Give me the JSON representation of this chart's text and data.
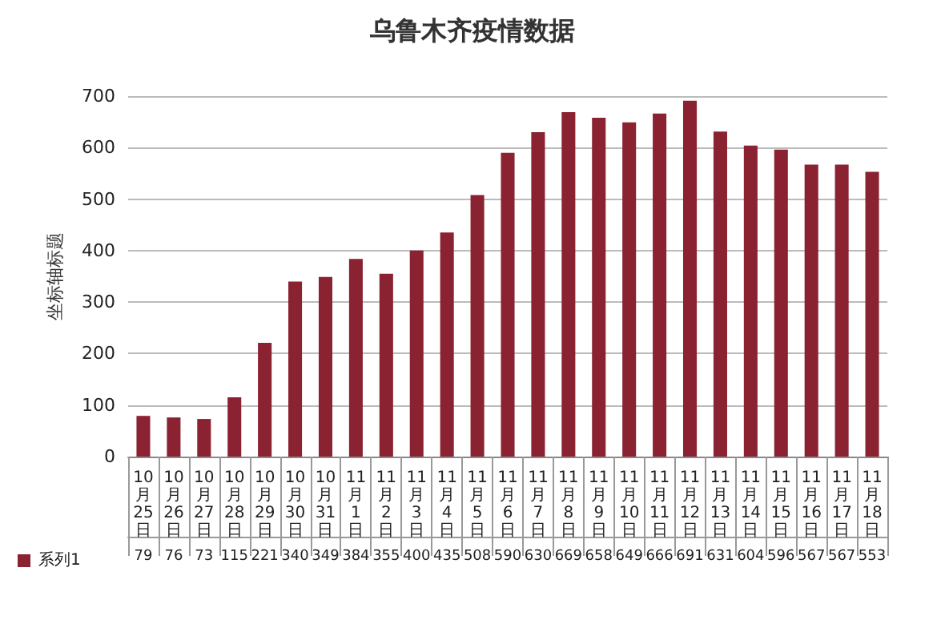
{
  "chart_data": {
    "type": "bar",
    "title": "乌鲁木齐疫情数据",
    "ylabel": "坐标轴标题",
    "categories": [
      "10月25日",
      "10月26日",
      "10月27日",
      "10月28日",
      "10月29日",
      "10月30日",
      "10月31日",
      "11月1日",
      "11月2日",
      "11月3日",
      "11月4日",
      "11月5日",
      "11月6日",
      "11月7日",
      "11月8日",
      "11月9日",
      "11月10日",
      "11月11日",
      "11月12日",
      "11月13日",
      "11月14日",
      "11月15日",
      "11月16日",
      "11月17日",
      "11月18日"
    ],
    "series": [
      {
        "name": "系列1",
        "color": "#8b2232",
        "values": [
          79,
          76,
          73,
          115,
          221,
          340,
          349,
          384,
          355,
          400,
          435,
          508,
          590,
          630,
          669,
          658,
          649,
          666,
          691,
          631,
          604,
          596,
          567,
          567,
          553
        ]
      }
    ],
    "ylim": [
      0,
      700
    ],
    "yticks": [
      0,
      100,
      200,
      300,
      400,
      500,
      600,
      700
    ],
    "grid": "y",
    "legend": "bottom left",
    "data_labels": true
  }
}
